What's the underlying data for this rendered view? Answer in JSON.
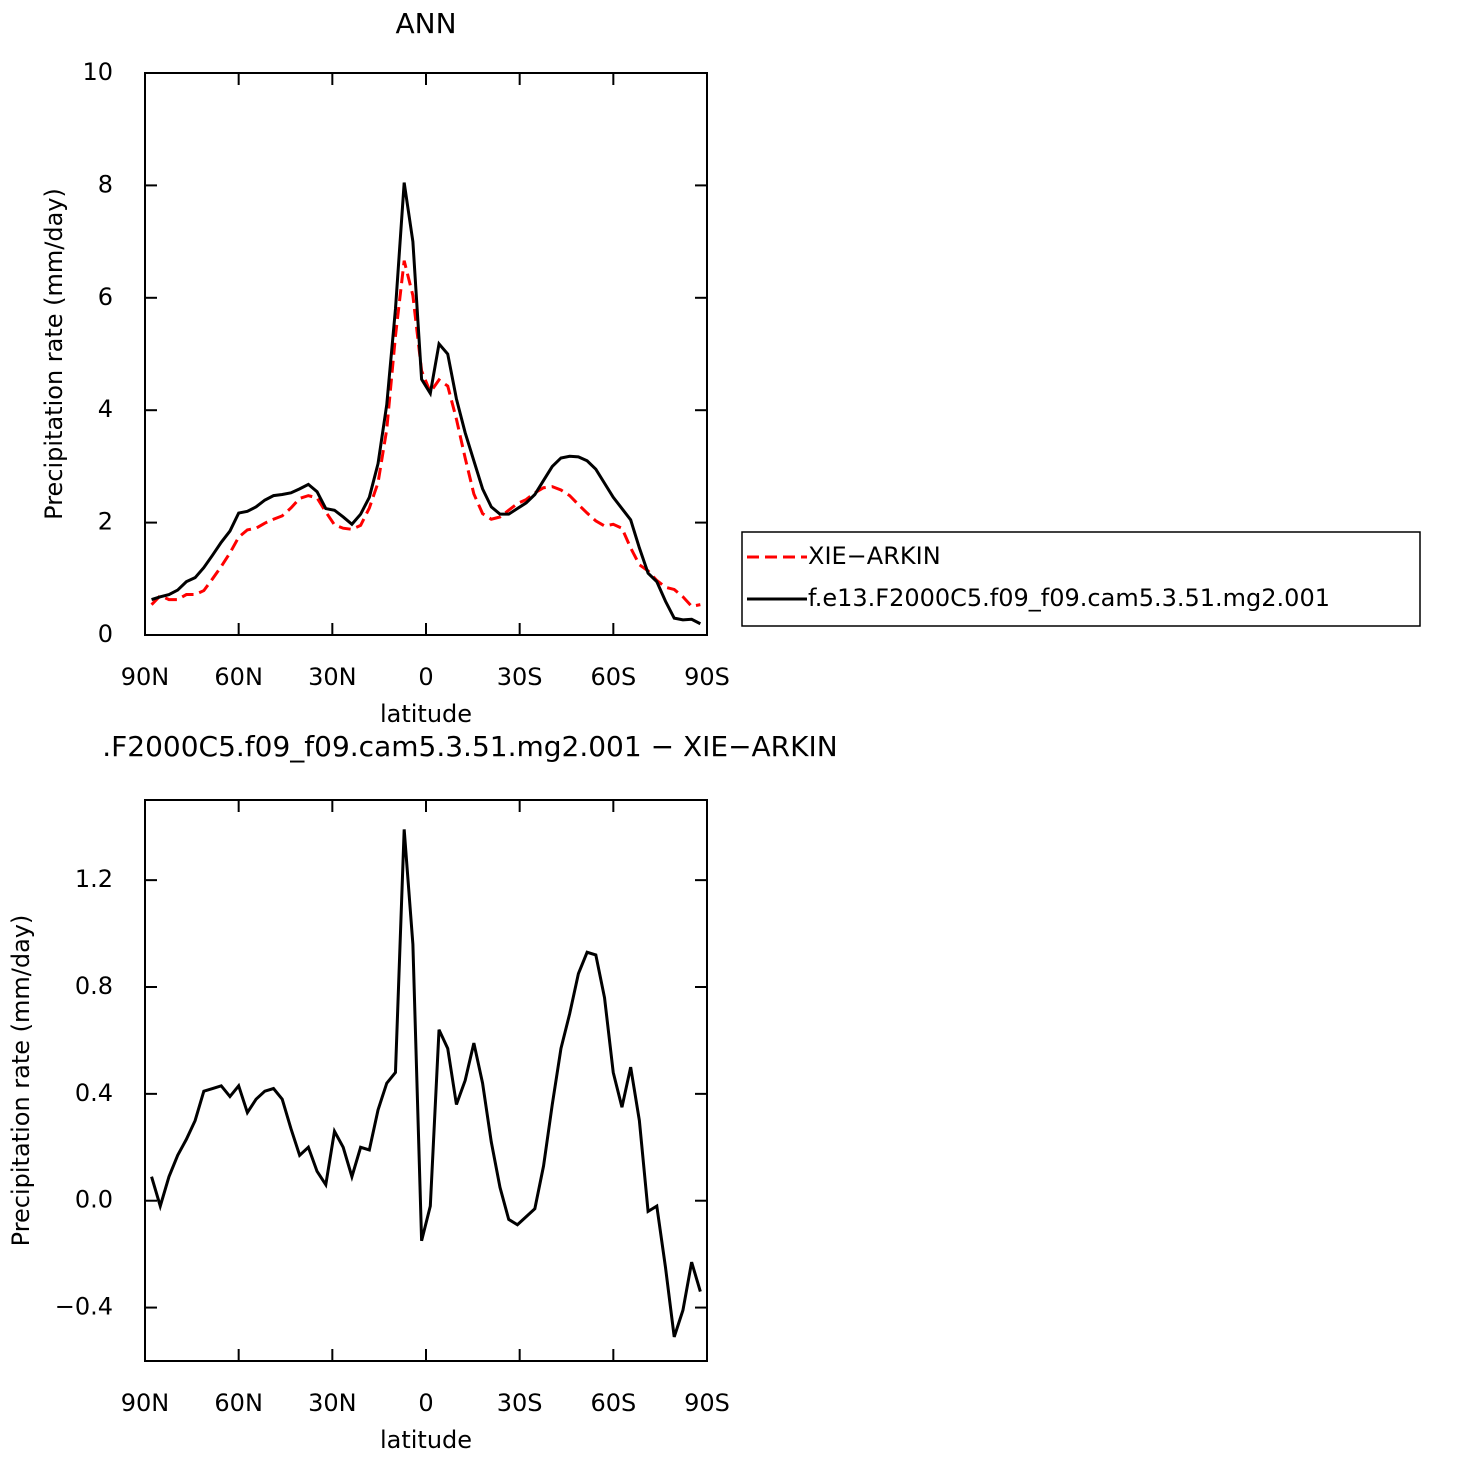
{
  "chart_data": [
    {
      "type": "line",
      "title": "ANN",
      "x_label": "latitude",
      "y_label": "Precipitation rate (mm/day)",
      "x": [
        87.9,
        85.11,
        82.32,
        79.53,
        76.74,
        73.95,
        71.16,
        68.37,
        65.58,
        62.79,
        60.0,
        57.21,
        54.42,
        51.63,
        48.84,
        46.05,
        43.26,
        40.47,
        37.68,
        34.89,
        32.1,
        29.31,
        26.52,
        23.73,
        20.94,
        18.15,
        15.36,
        12.57,
        9.78,
        6.99,
        4.2,
        1.41,
        -1.38,
        -4.17,
        -6.96,
        -9.75,
        -12.54,
        -15.33,
        -18.12,
        -20.91,
        -23.7,
        -26.49,
        -29.28,
        -32.07,
        -34.86,
        -37.65,
        -40.44,
        -43.23,
        -46.02,
        -48.81,
        -51.6,
        -54.39,
        -57.18,
        -59.97,
        -62.76,
        -65.55,
        -68.34,
        -71.13,
        -73.92,
        -76.71,
        -79.5,
        -82.29,
        -85.08,
        -87.87
      ],
      "series": [
        {
          "name": "XIE−ARKIN",
          "color": "#ff0000",
          "dashed": true,
          "values": [
            0.54,
            0.7,
            0.63,
            0.63,
            0.72,
            0.72,
            0.79,
            1.0,
            1.22,
            1.46,
            1.74,
            1.87,
            1.9,
            1.99,
            2.06,
            2.12,
            2.26,
            2.43,
            2.48,
            2.44,
            2.19,
            1.96,
            1.9,
            1.88,
            1.95,
            2.26,
            2.71,
            3.66,
            5.32,
            6.66,
            6.04,
            4.7,
            4.32,
            4.54,
            4.43,
            3.84,
            3.15,
            2.51,
            2.16,
            2.06,
            2.1,
            2.22,
            2.34,
            2.41,
            2.53,
            2.62,
            2.64,
            2.58,
            2.48,
            2.32,
            2.17,
            2.03,
            1.94,
            1.97,
            1.9,
            1.55,
            1.25,
            1.14,
            0.97,
            0.85,
            0.81,
            0.68,
            0.51,
            0.54
          ]
        },
        {
          "name": "f.e13.F2000C5.f09_f09.cam5.3.51.mg2.001",
          "color": "#000000",
          "dashed": false,
          "values": [
            0.63,
            0.68,
            0.72,
            0.8,
            0.95,
            1.02,
            1.2,
            1.42,
            1.65,
            1.85,
            2.17,
            2.2,
            2.28,
            2.4,
            2.48,
            2.5,
            2.53,
            2.6,
            2.68,
            2.55,
            2.25,
            2.22,
            2.1,
            1.97,
            2.15,
            2.45,
            3.05,
            4.1,
            5.8,
            8.05,
            7.0,
            4.55,
            4.3,
            5.18,
            5.0,
            4.2,
            3.6,
            3.1,
            2.6,
            2.28,
            2.15,
            2.15,
            2.25,
            2.35,
            2.5,
            2.75,
            3.0,
            3.15,
            3.18,
            3.17,
            3.1,
            2.95,
            2.7,
            2.45,
            2.25,
            2.05,
            1.55,
            1.1,
            0.95,
            0.6,
            0.3,
            0.27,
            0.28,
            0.2
          ]
        }
      ],
      "xlim": [
        90,
        -90
      ],
      "xticks": [
        {
          "value": 90,
          "label": "90N"
        },
        {
          "value": 60,
          "label": "60N"
        },
        {
          "value": 30,
          "label": "30N"
        },
        0,
        {
          "value": -30,
          "label": "30S"
        },
        {
          "value": -60,
          "label": "60S"
        },
        {
          "value": -90,
          "label": "90S"
        }
      ],
      "ylim": [
        0,
        10
      ],
      "yticks": [
        0,
        2,
        4,
        6,
        8,
        10
      ],
      "legend": "right"
    },
    {
      "type": "line",
      "title": ".F2000C5.f09_f09.cam5.3.51.mg2.001 − XIE−ARKIN",
      "x_label": "latitude",
      "y_label": "Precipitation rate (mm/day)",
      "x": [
        87.9,
        85.11,
        82.32,
        79.53,
        76.74,
        73.95,
        71.16,
        68.37,
        65.58,
        62.79,
        60.0,
        57.21,
        54.42,
        51.63,
        48.84,
        46.05,
        43.26,
        40.47,
        37.68,
        34.89,
        32.1,
        29.31,
        26.52,
        23.73,
        20.94,
        18.15,
        15.36,
        12.57,
        9.78,
        6.99,
        4.2,
        1.41,
        -1.38,
        -4.17,
        -6.96,
        -9.75,
        -12.54,
        -15.33,
        -18.12,
        -20.91,
        -23.7,
        -26.49,
        -29.28,
        -32.07,
        -34.86,
        -37.65,
        -40.44,
        -43.23,
        -46.02,
        -48.81,
        -51.6,
        -54.39,
        -57.18,
        -59.97,
        -62.76,
        -65.55,
        -68.34,
        -71.13,
        -73.92,
        -76.71,
        -79.5,
        -82.29,
        -85.08,
        -87.87
      ],
      "series": [
        {
          "color": "#000000",
          "dashed": false,
          "values": [
            0.09,
            -0.02,
            0.09,
            0.17,
            0.23,
            0.3,
            0.41,
            0.42,
            0.43,
            0.39,
            0.43,
            0.33,
            0.38,
            0.41,
            0.42,
            0.38,
            0.27,
            0.17,
            0.2,
            0.11,
            0.06,
            0.26,
            0.2,
            0.09,
            0.2,
            0.19,
            0.34,
            0.44,
            0.48,
            1.39,
            0.96,
            -0.15,
            -0.02,
            0.64,
            0.57,
            0.36,
            0.45,
            0.59,
            0.44,
            0.22,
            0.05,
            -0.07,
            -0.09,
            -0.06,
            -0.03,
            0.13,
            0.36,
            0.57,
            0.7,
            0.85,
            0.93,
            0.92,
            0.76,
            0.48,
            0.35,
            0.5,
            0.3,
            -0.04,
            -0.02,
            -0.25,
            -0.51,
            -0.41,
            -0.23,
            -0.34
          ]
        }
      ],
      "xlim": [
        90,
        -90
      ],
      "xticks": [
        {
          "value": 90,
          "label": "90N"
        },
        {
          "value": 60,
          "label": "60N"
        },
        {
          "value": 30,
          "label": "30N"
        },
        0,
        {
          "value": -30,
          "label": "30S"
        },
        {
          "value": -60,
          "label": "60S"
        },
        {
          "value": -90,
          "label": "90S"
        }
      ],
      "ylim": [
        -0.6,
        1.5
      ],
      "yticks": [
        {
          "value": -0.4,
          "label": "−0.4"
        },
        {
          "value": 0,
          "label": "0.0"
        },
        0.4,
        0.8,
        1.2
      ]
    }
  ]
}
